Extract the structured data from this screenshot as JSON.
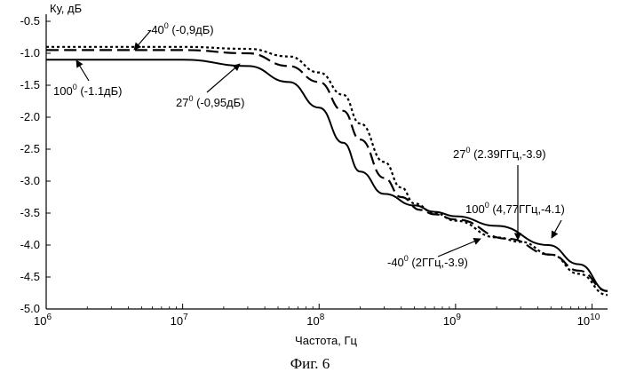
{
  "chart_data": {
    "type": "line",
    "ylabel": "Ку, дБ",
    "xlabel": "Частота, Гц",
    "x_scale": "log",
    "xlim": [
      1000000,
      13000000000
    ],
    "ylim": [
      -5.0,
      -0.5
    ],
    "x_ticks": [
      {
        "value": 1000000,
        "base": "10",
        "exp": "6"
      },
      {
        "value": 10000000,
        "base": "10",
        "exp": "7"
      },
      {
        "value": 100000000,
        "base": "10",
        "exp": "8"
      },
      {
        "value": 1000000000,
        "base": "10",
        "exp": "9"
      },
      {
        "value": 10000000000,
        "base": "10",
        "exp": "10"
      }
    ],
    "y_ticks": [
      "-0.5",
      "-1.0",
      "-1.5",
      "-2.0",
      "-2.5",
      "-3.0",
      "-3.5",
      "-4.0",
      "-4.5",
      "-5.0"
    ],
    "grid": false,
    "series": [
      {
        "style": "dotted",
        "points": [
          [
            1000000,
            -0.9
          ],
          [
            10000000,
            -0.9
          ],
          [
            30000000,
            -0.93
          ],
          [
            60000000,
            -1.05
          ],
          [
            100000000,
            -1.3
          ],
          [
            150000000,
            -1.65
          ],
          [
            200000000,
            -2.1
          ],
          [
            300000000,
            -2.7
          ],
          [
            400000000,
            -3.1
          ],
          [
            500000000,
            -3.35
          ],
          [
            700000000,
            -3.5
          ],
          [
            1000000000,
            -3.62
          ],
          [
            2000000000,
            -3.88
          ],
          [
            3000000000,
            -3.95
          ],
          [
            5000000000,
            -4.15
          ],
          [
            8000000000,
            -4.45
          ],
          [
            13000000000,
            -4.78
          ]
        ]
      },
      {
        "style": "dashed",
        "points": [
          [
            1000000,
            -0.95
          ],
          [
            10000000,
            -0.95
          ],
          [
            30000000,
            -1.0
          ],
          [
            60000000,
            -1.2
          ],
          [
            100000000,
            -1.45
          ],
          [
            150000000,
            -1.9
          ],
          [
            200000000,
            -2.35
          ],
          [
            300000000,
            -2.95
          ],
          [
            400000000,
            -3.25
          ],
          [
            550000000,
            -3.45
          ],
          [
            700000000,
            -3.52
          ],
          [
            1000000000,
            -3.6
          ],
          [
            2390000000,
            -3.9
          ],
          [
            5000000000,
            -4.15
          ],
          [
            8000000000,
            -4.4
          ],
          [
            13000000000,
            -4.72
          ]
        ]
      },
      {
        "style": "solid",
        "points": [
          [
            1000000,
            -1.1
          ],
          [
            10000000,
            -1.1
          ],
          [
            30000000,
            -1.2
          ],
          [
            60000000,
            -1.45
          ],
          [
            100000000,
            -1.85
          ],
          [
            150000000,
            -2.4
          ],
          [
            200000000,
            -2.85
          ],
          [
            300000000,
            -3.2
          ],
          [
            500000000,
            -3.38
          ],
          [
            700000000,
            -3.48
          ],
          [
            1000000000,
            -3.55
          ],
          [
            2000000000,
            -3.7
          ],
          [
            4770000000,
            -4.0
          ],
          [
            8000000000,
            -4.3
          ],
          [
            13000000000,
            -4.72
          ]
        ]
      }
    ],
    "annotations": [
      {
        "deg": "-40",
        "sup": "0",
        "text": " (-0,9дБ)"
      },
      {
        "deg": "100",
        "sup": "0",
        "text": " (-1.1дБ)"
      },
      {
        "deg": "27",
        "sup": "0",
        "text": " (-0,95дБ)"
      },
      {
        "deg": "27",
        "sup": "0",
        "text": " (2.39ГГц,-3.9)"
      },
      {
        "deg": "100",
        "sup": "0",
        "text": " (4,77ГГц,-4.1)"
      },
      {
        "deg": "-40",
        "sup": "0",
        "text": " (2ГГц,-3.9)"
      }
    ]
  },
  "caption": "Фиг. 6"
}
